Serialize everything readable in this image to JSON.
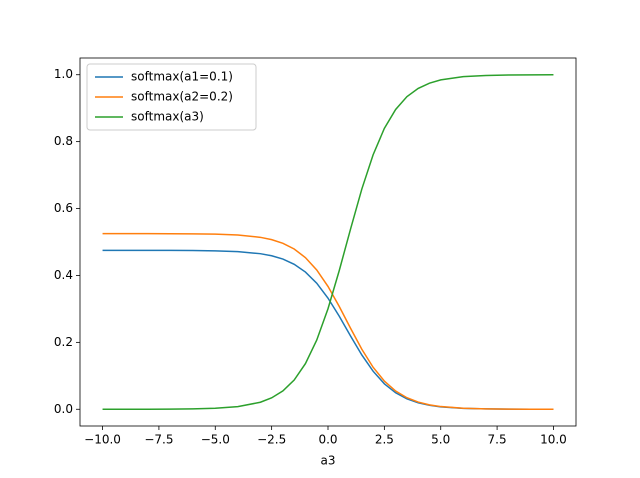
{
  "chart_data": {
    "type": "line",
    "xlabel": "a3",
    "x": [
      -10,
      -9,
      -8,
      -7,
      -6,
      -5,
      -4,
      -3,
      -2.5,
      -2,
      -1.5,
      -1,
      -0.5,
      0,
      0.5,
      1,
      1.5,
      2,
      2.5,
      3,
      3.5,
      4,
      4.5,
      5,
      6,
      7,
      8,
      9,
      10
    ],
    "series": [
      {
        "name": "softmax(a1=0.1)",
        "color": "#1f77b4",
        "values": [
          0.47501,
          0.475,
          0.47496,
          0.47484,
          0.47452,
          0.47365,
          0.47131,
          0.46507,
          0.45883,
          0.44891,
          0.43345,
          0.41017,
          0.37679,
          0.33222,
          0.27801,
          0.21907,
          0.16233,
          0.11375,
          0.07617,
          0.04931,
          0.03118,
          0.01941,
          0.01197,
          0.00733,
          0.00272,
          0.00101,
          0.00037,
          0.00014,
          5e-05
        ]
      },
      {
        "name": "softmax(a2=0.2)",
        "color": "#ff7f0e",
        "values": [
          0.52497,
          0.52496,
          0.5249,
          0.52478,
          0.52442,
          0.52346,
          0.52088,
          0.51398,
          0.50708,
          0.49612,
          0.47904,
          0.4533,
          0.41642,
          0.36716,
          0.30725,
          0.24211,
          0.1794,
          0.12571,
          0.08418,
          0.0545,
          0.03446,
          0.02146,
          0.01323,
          0.0081,
          0.00301,
          0.00111,
          0.00041,
          0.00015,
          6e-05
        ]
      },
      {
        "name": "softmax(a3)",
        "color": "#2ca02c",
        "values": [
          2e-05,
          5e-05,
          0.00014,
          0.00039,
          0.00106,
          0.00289,
          0.00781,
          0.02095,
          0.03408,
          0.05497,
          0.08751,
          0.13653,
          0.20679,
          0.30061,
          0.41474,
          0.53882,
          0.65827,
          0.76053,
          0.83965,
          0.89619,
          0.93436,
          0.95913,
          0.97481,
          0.98457,
          0.99427,
          0.99788,
          0.99922,
          0.99971,
          0.99989
        ]
      }
    ],
    "xlim": [
      -11,
      11
    ],
    "ylim": [
      -0.05,
      1.05
    ],
    "xticks": [
      {
        "value": -10,
        "label": "−10.0"
      },
      {
        "value": -7.5,
        "label": "−7.5"
      },
      {
        "value": -5,
        "label": "−5.0"
      },
      {
        "value": -2.5,
        "label": "−2.5"
      },
      {
        "value": 0,
        "label": "0.0"
      },
      {
        "value": 2.5,
        "label": "2.5"
      },
      {
        "value": 5,
        "label": "5.0"
      },
      {
        "value": 7.5,
        "label": "7.5"
      },
      {
        "value": 10,
        "label": "10.0"
      }
    ],
    "yticks": [
      {
        "value": 0,
        "label": "0.0"
      },
      0.2,
      0.4,
      0.6,
      0.8,
      {
        "value": 1,
        "label": "1.0"
      }
    ],
    "legend": "upper left"
  }
}
